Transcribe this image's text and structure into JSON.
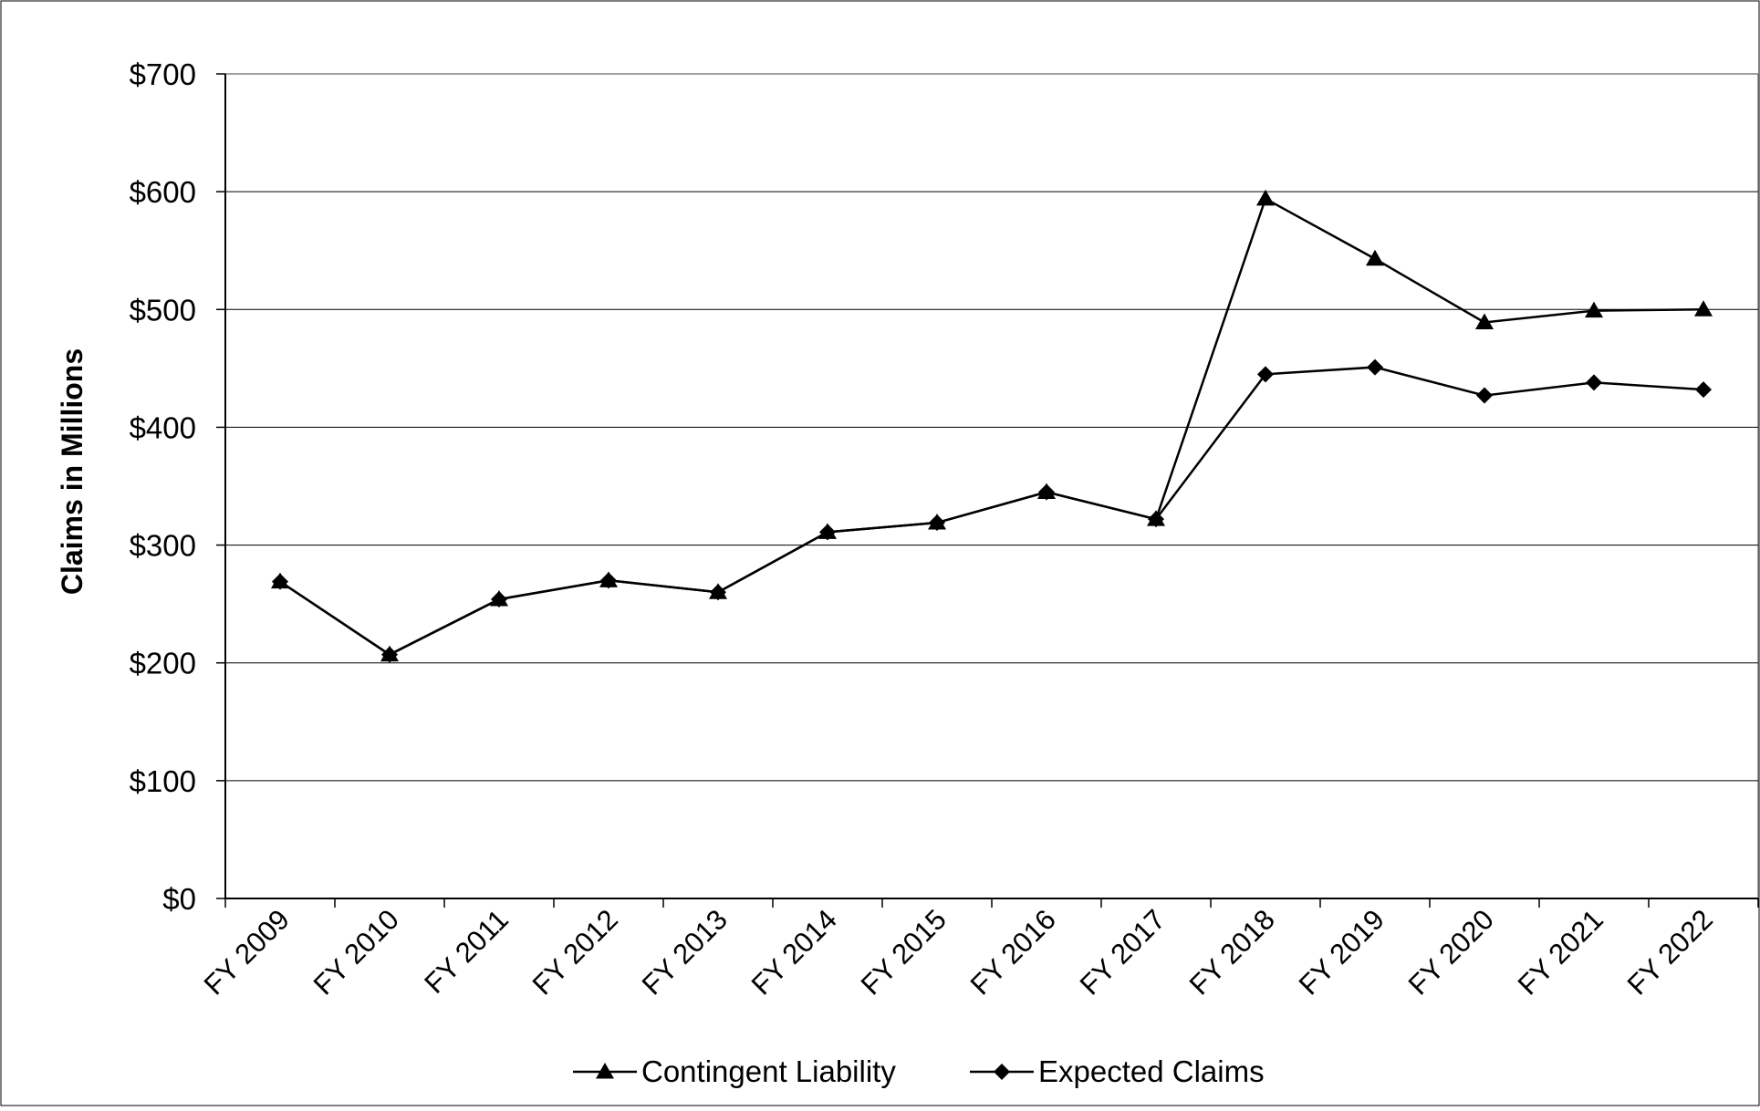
{
  "chart_data": {
    "type": "line",
    "title": "",
    "xlabel": "",
    "ylabel": "Claims in Millions",
    "categories": [
      "FY 2009",
      "FY 2010",
      "FY 2011",
      "FY 2012",
      "FY 2013",
      "FY 2014",
      "FY 2015",
      "FY 2016",
      "FY 2017",
      "FY 2018",
      "FY 2019",
      "FY 2020",
      "FY 2021",
      "FY 2022"
    ],
    "ylim": [
      0,
      700
    ],
    "yticks": [
      0,
      100,
      200,
      300,
      400,
      500,
      600,
      700
    ],
    "ytick_labels": [
      "$0",
      "$100",
      "$200",
      "$300",
      "$400",
      "$500",
      "$600",
      "$700"
    ],
    "grid": true,
    "legend_position": "bottom",
    "series": [
      {
        "name": "Contingent Liability",
        "marker": "triangle",
        "color": "#000000",
        "values": [
          269,
          207,
          254,
          270,
          260,
          311,
          319,
          345,
          322,
          594,
          543,
          489,
          499,
          500
        ]
      },
      {
        "name": "Expected Claims",
        "marker": "diamond",
        "color": "#000000",
        "values": [
          269,
          207,
          254,
          270,
          260,
          311,
          319,
          345,
          322,
          445,
          451,
          427,
          438,
          432
        ]
      }
    ]
  }
}
